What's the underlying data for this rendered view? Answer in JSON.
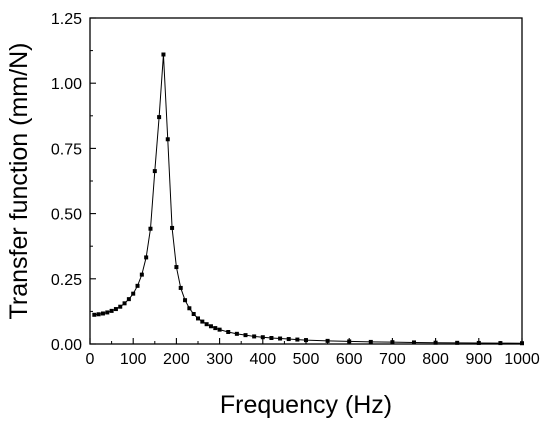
{
  "chart_data": {
    "type": "line",
    "title": "",
    "xlabel": "Frequency (Hz)",
    "ylabel": "Transfer function (mm/N)",
    "xlim": [
      0,
      1000
    ],
    "ylim": [
      0,
      1.25
    ],
    "x_ticks": [
      0,
      100,
      200,
      300,
      400,
      500,
      600,
      700,
      800,
      900,
      1000
    ],
    "y_ticks": [
      "0.00",
      "0.25",
      "0.50",
      "0.75",
      "1.00",
      "1.25"
    ],
    "grid": false,
    "legend": "none",
    "series": [
      {
        "marker": "square",
        "color": "#000000",
        "x": [
          10,
          20,
          30,
          40,
          50,
          60,
          70,
          80,
          90,
          100,
          110,
          120,
          130,
          140,
          150,
          160,
          170,
          180,
          190,
          200,
          210,
          220,
          230,
          240,
          250,
          260,
          270,
          280,
          290,
          300,
          320,
          340,
          360,
          380,
          400,
          420,
          440,
          460,
          480,
          500,
          550,
          600,
          650,
          700,
          750,
          800,
          850,
          900,
          950,
          1000
        ],
        "y": [
          0.112,
          0.114,
          0.117,
          0.121,
          0.127,
          0.134,
          0.143,
          0.156,
          0.172,
          0.193,
          0.223,
          0.266,
          0.332,
          0.442,
          0.663,
          0.87,
          1.11,
          0.785,
          0.445,
          0.295,
          0.215,
          0.168,
          0.137,
          0.115,
          0.098,
          0.086,
          0.076,
          0.068,
          0.061,
          0.055,
          0.046,
          0.039,
          0.034,
          0.029,
          0.026,
          0.023,
          0.021,
          0.019,
          0.017,
          0.015,
          0.012,
          0.01,
          0.008,
          0.007,
          0.006,
          0.005,
          0.0045,
          0.004,
          0.0035,
          0.003
        ]
      }
    ]
  }
}
